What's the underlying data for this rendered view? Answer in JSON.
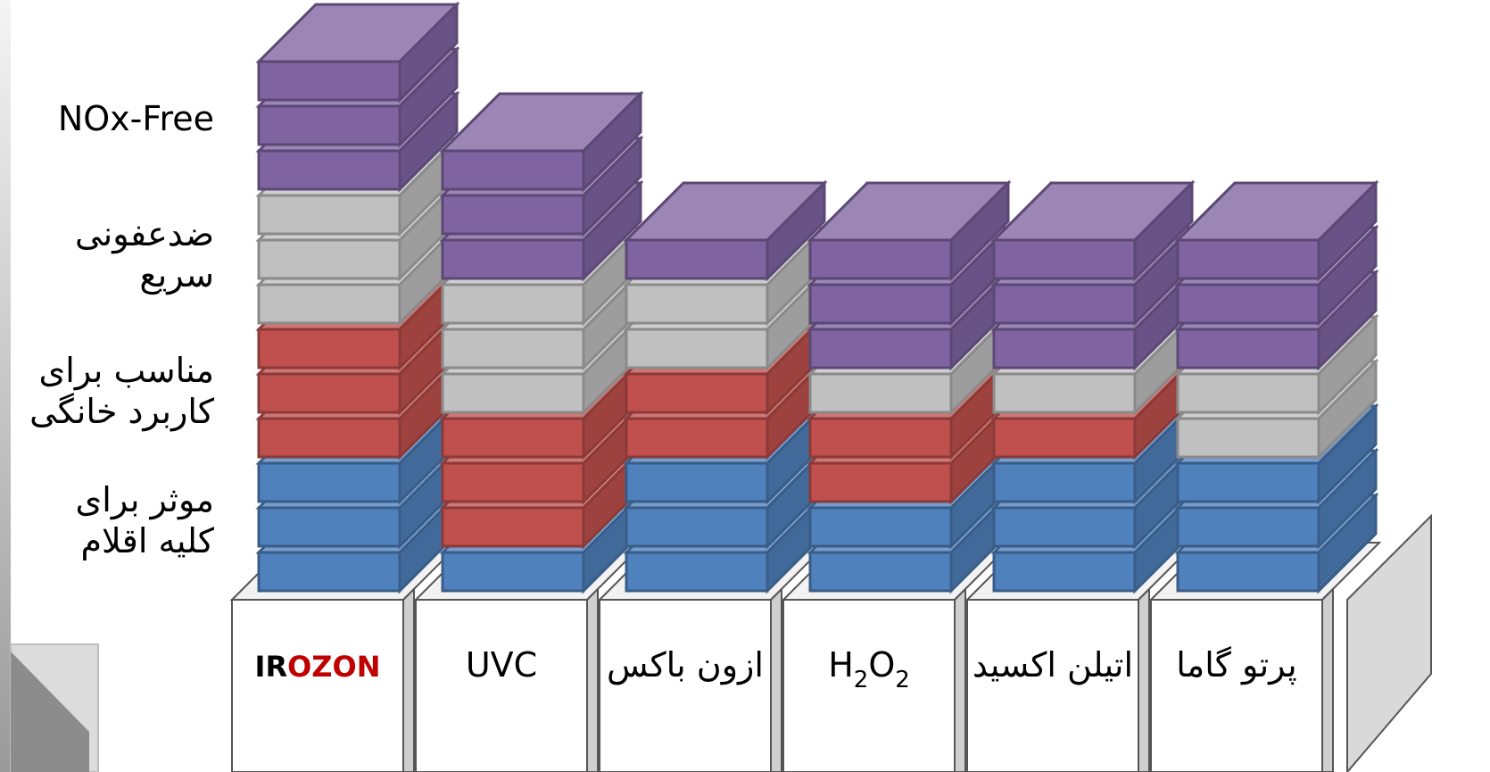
{
  "chart_data": {
    "type": "bar",
    "variant": "stacked-3d-blocks",
    "title": "",
    "xlabel": "",
    "ylabel": "",
    "categories": [
      "IROZON",
      "UVC",
      "ازون باکس",
      "H2O2",
      "اتیلن اکسید",
      "پرتو گاما"
    ],
    "category_label_parts": {
      "IROZON": [
        {
          "text": "IR",
          "color": "#000000"
        },
        {
          "text": "OZON",
          "color": "#C00000"
        }
      ],
      "H2O2": [
        {
          "text": "H"
        },
        {
          "text": "2",
          "sub": true
        },
        {
          "text": "O"
        },
        {
          "text": "2",
          "sub": true
        }
      ]
    },
    "row_labels": [
      {
        "lines": [
          "موثر برای",
          "کلیه اقلام"
        ],
        "series": 0
      },
      {
        "lines": [
          "مناسب برای",
          "کاربرد خانگی"
        ],
        "series": 1
      },
      {
        "lines": [
          "ضدعفونی",
          "سریع"
        ],
        "series": 2
      },
      {
        "lines": [
          "NOx-Free"
        ],
        "series": 3
      }
    ],
    "series": [
      {
        "color": "#4F81BD",
        "values": [
          3,
          1,
          3,
          2,
          3,
          3
        ]
      },
      {
        "color": "#C0504D",
        "values": [
          3,
          3,
          2,
          2,
          1,
          0
        ]
      },
      {
        "color": "#C0C0C0",
        "values": [
          3,
          3,
          2,
          1,
          1,
          2
        ]
      },
      {
        "color": "#8064A2",
        "values": [
          3,
          3,
          1,
          3,
          3,
          3
        ]
      }
    ],
    "ylim": [
      0,
      12
    ],
    "legend": "left",
    "grid": false
  }
}
